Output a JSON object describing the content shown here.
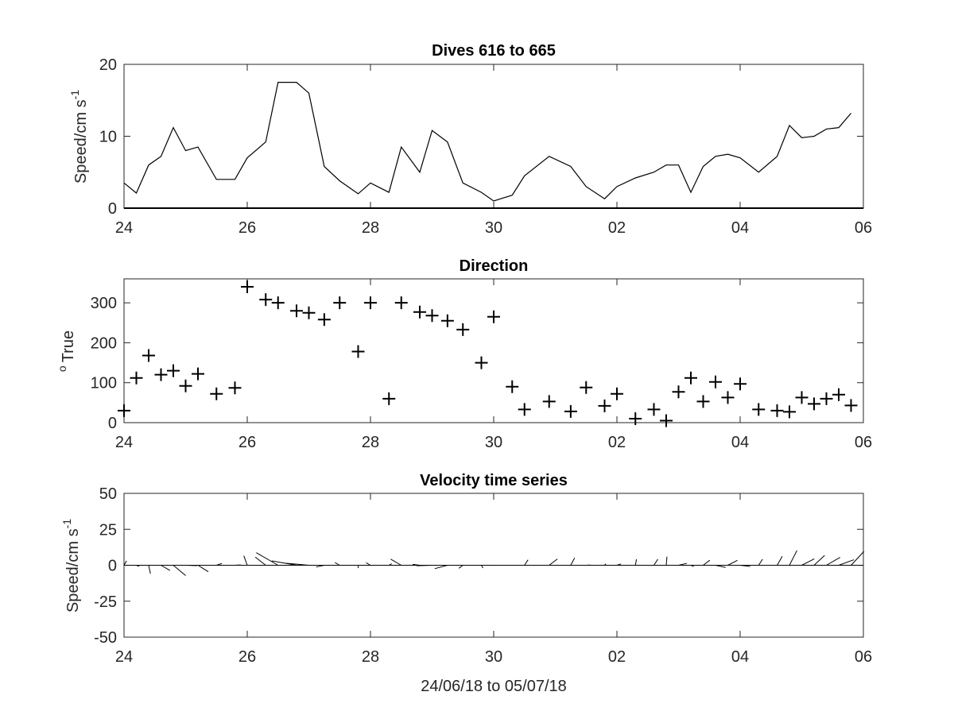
{
  "chart_data": [
    {
      "type": "line",
      "title": "Dives 616 to 665",
      "ylabel": "Speed/cm s",
      "ylabel_superscript": "-1",
      "xlim": [
        "2018-06-24",
        "2018-07-06"
      ],
      "ylim": [
        0,
        20
      ],
      "x_ticks": [
        "24",
        "26",
        "28",
        "30",
        "02",
        "04",
        "06"
      ],
      "y_ticks": [
        "0",
        "10",
        "20"
      ],
      "grid": false,
      "x": [
        "2018-06-24 00:00",
        "2018-06-24 04:48",
        "2018-06-24 09:36",
        "2018-06-24 14:24",
        "2018-06-24 19:12",
        "2018-06-25 00:00",
        "2018-06-25 04:48",
        "2018-06-25 12:00",
        "2018-06-25 19:12",
        "2018-06-26 00:00",
        "2018-06-26 07:12",
        "2018-06-26 12:00",
        "2018-06-26 19:12",
        "2018-06-27 00:00",
        "2018-06-27 06:00",
        "2018-06-27 12:00",
        "2018-06-27 19:12",
        "2018-06-28 00:00",
        "2018-06-28 07:12",
        "2018-06-28 12:00",
        "2018-06-28 19:12",
        "2018-06-29 00:00",
        "2018-06-29 06:00",
        "2018-06-29 12:00",
        "2018-06-29 19:12",
        "2018-06-30 00:00",
        "2018-06-30 07:12",
        "2018-06-30 12:00",
        "2018-06-30 21:36",
        "2018-07-01 06:00",
        "2018-07-01 12:00",
        "2018-07-01 19:12",
        "2018-07-02 00:00",
        "2018-07-02 07:12",
        "2018-07-02 14:24",
        "2018-07-02 19:12",
        "2018-07-03 00:00",
        "2018-07-03 04:48",
        "2018-07-03 09:36",
        "2018-07-03 14:24",
        "2018-07-03 19:12",
        "2018-07-04 00:00",
        "2018-07-04 07:12",
        "2018-07-04 14:24",
        "2018-07-04 19:12",
        "2018-07-05 00:00",
        "2018-07-05 04:48",
        "2018-07-05 09:36",
        "2018-07-05 14:24",
        "2018-07-05 19:12"
      ],
      "values": [
        3.5,
        2.1,
        6.0,
        7.2,
        11.2,
        8.0,
        8.5,
        4.0,
        4.0,
        7.0,
        9.2,
        17.5,
        17.5,
        16.0,
        5.8,
        3.8,
        2.0,
        3.5,
        2.2,
        8.5,
        5.0,
        10.8,
        9.2,
        3.5,
        2.2,
        1.0,
        1.8,
        4.5,
        7.2,
        5.8,
        3.0,
        1.3,
        3.0,
        4.2,
        5.0,
        6.0,
        6.0,
        2.2,
        5.8,
        7.2,
        7.5,
        7.0,
        5.0,
        7.2,
        11.5,
        9.8,
        10.0,
        11.0,
        11.2,
        13.2
      ]
    },
    {
      "type": "scatter",
      "title": "Direction",
      "ylabel": "True",
      "ylabel_superscript": "o",
      "marker": "+",
      "xlim": [
        "2018-06-24",
        "2018-07-06"
      ],
      "ylim": [
        0,
        360
      ],
      "x_ticks": [
        "24",
        "26",
        "28",
        "30",
        "02",
        "04",
        "06"
      ],
      "y_ticks": [
        "0",
        "100",
        "200",
        "300"
      ],
      "grid": false,
      "x": [
        "2018-06-24 00:00",
        "2018-06-24 04:48",
        "2018-06-24 09:36",
        "2018-06-24 14:24",
        "2018-06-24 19:12",
        "2018-06-25 00:00",
        "2018-06-25 04:48",
        "2018-06-25 12:00",
        "2018-06-25 19:12",
        "2018-06-26 00:00",
        "2018-06-26 07:12",
        "2018-06-26 12:00",
        "2018-06-26 19:12",
        "2018-06-27 00:00",
        "2018-06-27 06:00",
        "2018-06-27 12:00",
        "2018-06-27 19:12",
        "2018-06-28 00:00",
        "2018-06-28 07:12",
        "2018-06-28 12:00",
        "2018-06-28 19:12",
        "2018-06-29 00:00",
        "2018-06-29 06:00",
        "2018-06-29 12:00",
        "2018-06-29 19:12",
        "2018-06-30 00:00",
        "2018-06-30 07:12",
        "2018-06-30 12:00",
        "2018-06-30 21:36",
        "2018-07-01 06:00",
        "2018-07-01 12:00",
        "2018-07-01 19:12",
        "2018-07-02 00:00",
        "2018-07-02 07:12",
        "2018-07-02 14:24",
        "2018-07-02 19:12",
        "2018-07-03 00:00",
        "2018-07-03 04:48",
        "2018-07-03 09:36",
        "2018-07-03 14:24",
        "2018-07-03 19:12",
        "2018-07-04 00:00",
        "2018-07-04 07:12",
        "2018-07-04 14:24",
        "2018-07-04 19:12",
        "2018-07-05 00:00",
        "2018-07-05 04:48",
        "2018-07-05 09:36",
        "2018-07-05 14:24",
        "2018-07-05 19:12"
      ],
      "values": [
        30,
        112,
        168,
        120,
        130,
        92,
        122,
        72,
        87,
        340,
        308,
        300,
        280,
        275,
        258,
        300,
        178,
        300,
        60,
        300,
        277,
        268,
        255,
        233,
        150,
        265,
        90,
        33,
        53,
        28,
        88,
        42,
        72,
        10,
        33,
        5,
        77,
        112,
        53,
        102,
        63,
        97,
        33,
        30,
        27,
        63,
        47,
        60,
        70,
        43
      ]
    },
    {
      "type": "quiver",
      "title": "Velocity time series",
      "ylabel": "Speed/cm s",
      "ylabel_superscript": "-1",
      "xlabel": "24/06/18 to 05/07/18",
      "xlim": [
        "2018-06-24",
        "2018-07-06"
      ],
      "ylim": [
        -50,
        50
      ],
      "x_ticks": [
        "24",
        "26",
        "28",
        "30",
        "02",
        "04",
        "06"
      ],
      "y_ticks": [
        "-50",
        "-25",
        "0",
        "25",
        "50"
      ],
      "grid": false,
      "note": "stick plot: each stick uses speed from 'Dives 616 to 665' and direction from 'Direction'"
    }
  ]
}
